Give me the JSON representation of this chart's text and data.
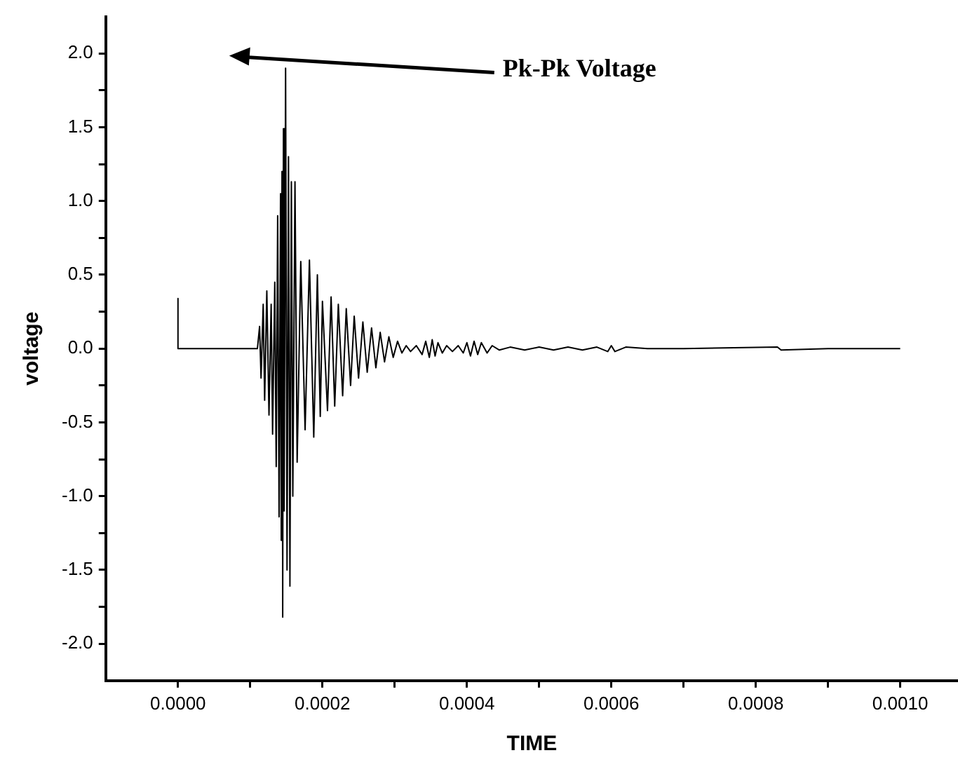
{
  "chart_data": {
    "type": "line",
    "xlabel": "TIME",
    "ylabel": "voltage",
    "annotations": [
      "Pk-Pk Voltage"
    ],
    "xlim": [
      -0.0001,
      0.00108
    ],
    "ylim": [
      -2.25,
      2.25
    ],
    "xticks": [
      {
        "value": 0,
        "label": "0.0000"
      },
      {
        "value": 0.0001,
        "label": null
      },
      {
        "value": 0.0002,
        "label": "0.0002"
      },
      {
        "value": 0.0003,
        "label": null
      },
      {
        "value": 0.0004,
        "label": "0.0004"
      },
      {
        "value": 0.0005,
        "label": null
      },
      {
        "value": 0.0006,
        "label": "0.0006"
      },
      {
        "value": 0.0007,
        "label": null
      },
      {
        "value": 0.0008,
        "label": "0.0008"
      },
      {
        "value": 0.0009,
        "label": null
      },
      {
        "value": 0.001,
        "label": "0.0010"
      }
    ],
    "yticks": [
      {
        "value": -2,
        "label": "-2.0"
      },
      {
        "value": -1.75,
        "label": null
      },
      {
        "value": -1.5,
        "label": "-1.5"
      },
      {
        "value": -1.25,
        "label": null
      },
      {
        "value": -1,
        "label": "-1.0"
      },
      {
        "value": -0.75,
        "label": null
      },
      {
        "value": -0.5,
        "label": "-0.5"
      },
      {
        "value": -0.25,
        "label": null
      },
      {
        "value": 0,
        "label": "0.0"
      },
      {
        "value": 0.25,
        "label": null
      },
      {
        "value": 0.5,
        "label": "0.5"
      },
      {
        "value": 0.75,
        "label": null
      },
      {
        "value": 1,
        "label": "1.0"
      },
      {
        "value": 1.25,
        "label": null
      },
      {
        "value": 1.5,
        "label": "1.5"
      },
      {
        "value": 1.75,
        "label": null
      },
      {
        "value": 2,
        "label": "2.0"
      }
    ],
    "grid": false,
    "legend": false,
    "series": [
      {
        "color": "#000000",
        "x": [
          0,
          0,
          0,
          0.00011,
          0.000113,
          0.000115,
          0.000118,
          0.00012,
          0.000123,
          0.000126,
          0.000129,
          0.000131,
          0.000134,
          0.000136,
          0.000138,
          0.00014,
          0.000142,
          0.000143,
          0.000144,
          0.000145,
          0.000146,
          0.000147,
          0.000149,
          0.000151,
          0.000153,
          0.000155,
          0.000157,
          0.000159,
          0.000162,
          0.000165,
          0.00017,
          0.000176,
          0.000182,
          0.000188,
          0.000193,
          0.000197,
          0.0002,
          0.000207,
          0.000212,
          0.000217,
          0.000222,
          0.000228,
          0.000233,
          0.000239,
          0.000244,
          0.00025,
          0.000256,
          0.000262,
          0.000268,
          0.000274,
          0.00028,
          0.000286,
          0.000292,
          0.000298,
          0.000304,
          0.00031,
          0.000316,
          0.000322,
          0.00033,
          0.000338,
          0.000343,
          0.000348,
          0.000352,
          0.000356,
          0.00036,
          0.000366,
          0.000372,
          0.00038,
          0.000388,
          0.000395,
          0.0004,
          0.000405,
          0.00041,
          0.000415,
          0.00042,
          0.000428,
          0.000435,
          0.000445,
          0.00046,
          0.00048,
          0.0005,
          0.00052,
          0.00054,
          0.00056,
          0.00058,
          0.000595,
          0.0006,
          0.000605,
          0.00062,
          0.00065,
          0.0007,
          0.00083,
          0.000835,
          0.0009,
          0.001
        ],
        "values": [
          0,
          0.34,
          0,
          0,
          0.15,
          -0.2,
          0.3,
          -0.35,
          0.39,
          -0.45,
          0.3,
          -0.58,
          0.45,
          -0.8,
          0.9,
          -1.14,
          1.05,
          -1.3,
          1.2,
          -1.82,
          1.49,
          -1.1,
          1.9,
          -1.5,
          1.3,
          -1.61,
          1.13,
          -1.0,
          1.13,
          -0.77,
          0.59,
          -0.55,
          0.6,
          -0.6,
          0.5,
          -0.46,
          0.32,
          -0.42,
          0.35,
          -0.39,
          0.3,
          -0.32,
          0.27,
          -0.25,
          0.22,
          -0.2,
          0.18,
          -0.16,
          0.14,
          -0.13,
          0.11,
          -0.09,
          0.08,
          -0.06,
          0.05,
          -0.03,
          0.02,
          -0.02,
          0.02,
          -0.04,
          0.05,
          -0.06,
          0.06,
          -0.05,
          0.04,
          -0.03,
          0.02,
          -0.02,
          0.02,
          -0.03,
          0.04,
          -0.05,
          0.05,
          -0.04,
          0.04,
          -0.03,
          0.02,
          -0.01,
          0.01,
          -0.01,
          0.01,
          -0.01,
          0.01,
          -0.01,
          0.01,
          -0.02,
          0.02,
          -0.02,
          0.01,
          0,
          0,
          0.01,
          -0.01,
          0,
          0
        ]
      }
    ]
  }
}
